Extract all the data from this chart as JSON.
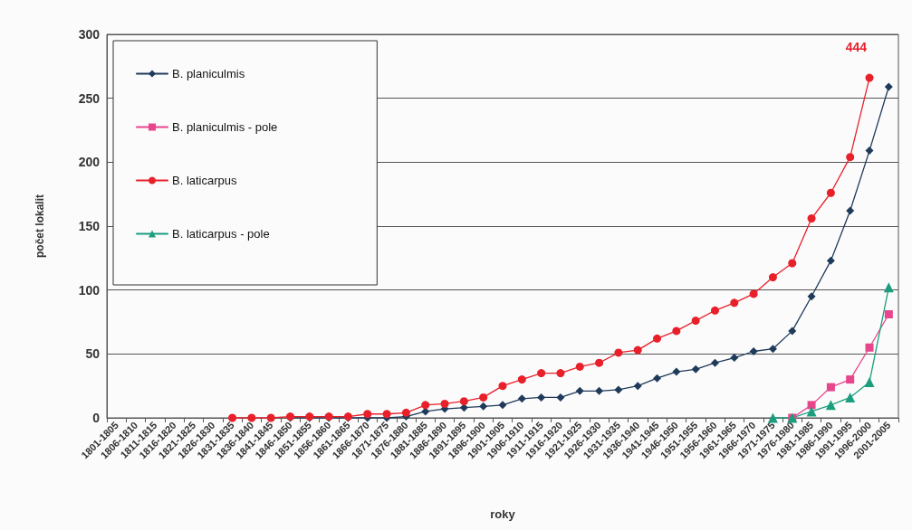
{
  "chart_data": {
    "type": "line",
    "xlabel": "roky",
    "ylabel": "počet lokalit",
    "categories": [
      "1801-1805",
      "1806-1810",
      "1811-1815",
      "1816-1820",
      "1821-1825",
      "1826-1830",
      "1831-1835",
      "1836-1840",
      "1841-1845",
      "1846-1850",
      "1851-1855",
      "1856-1860",
      "1861-1865",
      "1866-1870",
      "1871-1875",
      "1876-1880",
      "1881-1885",
      "1886-1890",
      "1891-1895",
      "1896-1900",
      "1901-1905",
      "1906-1910",
      "1911-1915",
      "1916-1920",
      "1921-1925",
      "1926-1930",
      "1931-1935",
      "1936-1940",
      "1941-1945",
      "1946-1950",
      "1951-1955",
      "1956-1960",
      "1961-1965",
      "1966-1970",
      "1971-1975",
      "1976-1980",
      "1981-1985",
      "1986-1990",
      "1991-1995",
      "1996-2000",
      "2001-2005"
    ],
    "series": [
      {
        "name": "B. planiculmis",
        "color": "#1f3a5a",
        "marker": "diamond",
        "values": [
          null,
          null,
          null,
          null,
          null,
          null,
          null,
          null,
          null,
          0,
          0,
          0,
          0,
          0,
          0,
          1,
          5,
          7,
          8,
          9,
          10,
          15,
          16,
          16,
          21,
          21,
          22,
          25,
          31,
          36,
          38,
          43,
          47,
          52,
          54,
          68,
          95,
          123,
          162,
          209,
          259
        ]
      },
      {
        "name": "B. planiculmis - pole",
        "color": "#e8468c",
        "marker": "square",
        "values": [
          null,
          null,
          null,
          null,
          null,
          null,
          null,
          null,
          null,
          null,
          null,
          null,
          null,
          null,
          null,
          null,
          null,
          null,
          null,
          null,
          null,
          null,
          null,
          null,
          null,
          null,
          null,
          null,
          null,
          null,
          null,
          null,
          null,
          null,
          null,
          0,
          10,
          24,
          30,
          55,
          81
        ]
      },
      {
        "name": "B. laticarpus",
        "color": "#e8202a",
        "marker": "circle",
        "values": [
          null,
          null,
          null,
          null,
          null,
          null,
          0,
          0,
          0,
          1,
          1,
          1,
          1,
          3,
          3,
          4,
          10,
          11,
          13,
          16,
          25,
          30,
          35,
          35,
          40,
          43,
          51,
          53,
          62,
          68,
          76,
          84,
          90,
          97,
          110,
          121,
          156,
          176,
          204,
          266,
          null
        ]
      },
      {
        "name": "B. laticarpus - pole",
        "color": "#1a9e7e",
        "marker": "triangle",
        "values": [
          null,
          null,
          null,
          null,
          null,
          null,
          null,
          null,
          null,
          null,
          null,
          null,
          null,
          null,
          null,
          null,
          null,
          null,
          null,
          null,
          null,
          null,
          null,
          null,
          null,
          null,
          null,
          null,
          null,
          null,
          null,
          null,
          null,
          null,
          0,
          0,
          5,
          10,
          16,
          28,
          102
        ]
      }
    ],
    "ylim": [
      0,
      300
    ],
    "yticks": [
      0,
      50,
      100,
      150,
      200,
      250,
      300
    ],
    "grid": "y",
    "legend": "top left",
    "line_style": "solid",
    "annotations": [
      "444"
    ]
  }
}
